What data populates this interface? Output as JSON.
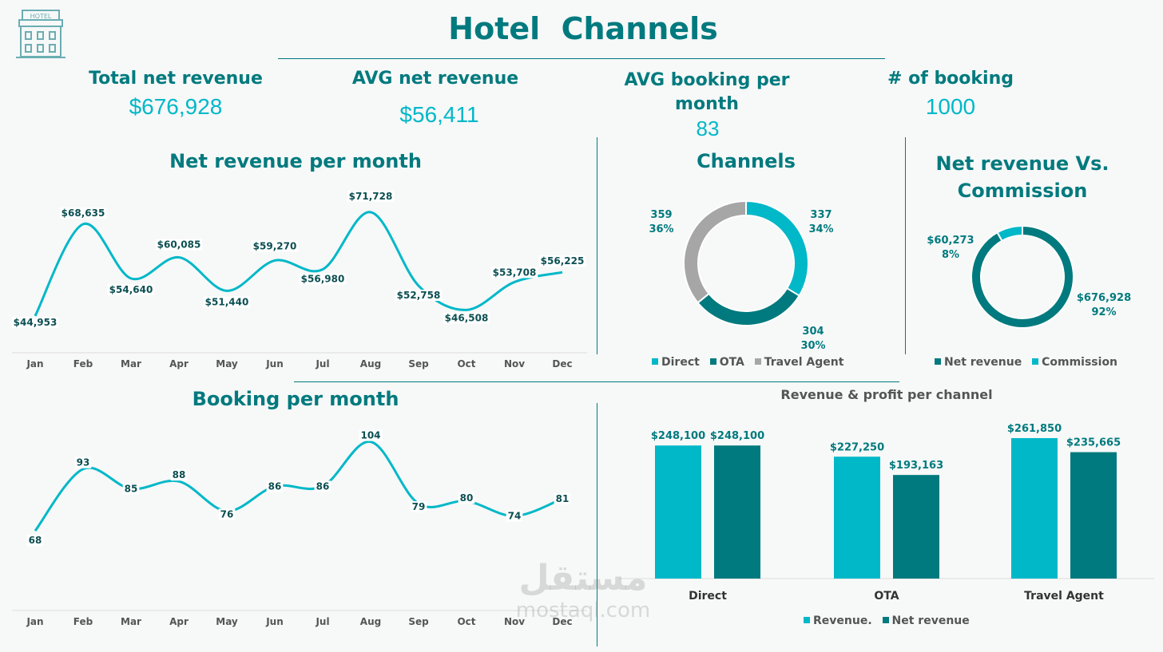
{
  "header": {
    "title": "Hotel  Channels",
    "logo_text": "HOTEL"
  },
  "kpis": [
    {
      "label": "Total net revenue",
      "value": "$676,928"
    },
    {
      "label": "AVG net revenue",
      "value": "$56,411"
    },
    {
      "label": "AVG  booking per month",
      "value": "83"
    },
    {
      "label": "# of booking",
      "value": "1000"
    }
  ],
  "colors": {
    "cyan": "#00B8C8",
    "teal": "#007A7E",
    "gray": "#A6A6A6"
  },
  "watermark": {
    "arabic": "مستقل",
    "latin": "mostaql.com"
  },
  "chart_data": [
    {
      "type": "line",
      "title": "Net revenue per month",
      "categories": [
        "Jan",
        "Feb",
        "Mar",
        "Apr",
        "May",
        "Jun",
        "Jul",
        "Aug",
        "Sep",
        "Oct",
        "Nov",
        "Dec"
      ],
      "values": [
        44953,
        68635,
        54640,
        60085,
        51440,
        59270,
        56980,
        71728,
        52758,
        46508,
        53708,
        56225
      ],
      "labels": [
        "$44,953",
        "$68,635",
        "$54,640",
        "$60,085",
        "$51,440",
        "$59,270",
        "$56,980",
        "$71,728",
        "$52,758",
        "$46,508",
        "$53,708",
        "$56,225"
      ]
    },
    {
      "type": "line",
      "title": "Booking per month",
      "categories": [
        "Jan",
        "Feb",
        "Mar",
        "Apr",
        "May",
        "Jun",
        "Jul",
        "Aug",
        "Sep",
        "Oct",
        "Nov",
        "Dec"
      ],
      "values": [
        68,
        93,
        85,
        88,
        76,
        86,
        86,
        104,
        79,
        80,
        74,
        81
      ],
      "labels": [
        "68",
        "93",
        "85",
        "88",
        "76",
        "86",
        "86",
        "104",
        "79",
        "80",
        "74",
        "81"
      ]
    },
    {
      "type": "pie",
      "title": "Channels",
      "legend": "bottom",
      "categories": [
        "Direct",
        "OTA",
        "Travel Agent"
      ],
      "values": [
        337,
        304,
        359
      ],
      "labels": [
        [
          "337",
          "34%"
        ],
        [
          "304",
          "30%"
        ],
        [
          "359",
          "36%"
        ]
      ]
    },
    {
      "type": "pie",
      "title": "Net revenue Vs. Commission",
      "legend": "bottom",
      "categories": [
        "Net revenue",
        "Commission"
      ],
      "values": [
        676928,
        60273
      ],
      "labels": [
        [
          "$676,928",
          "92%"
        ],
        [
          "$60,273",
          "8%"
        ]
      ]
    },
    {
      "type": "bar",
      "title": "Revenue & profit per channel",
      "legend": "bottom",
      "categories": [
        "Direct",
        "OTA",
        "Travel Agent"
      ],
      "series": [
        {
          "name": "Revenue.",
          "values": [
            248100,
            227250,
            261850
          ],
          "labels": [
            "$248,100",
            "$227,250",
            "$261,850"
          ]
        },
        {
          "name": "Net revenue",
          "values": [
            248100,
            193163,
            235665
          ],
          "labels": [
            "$248,100",
            "$193,163",
            "$235,665"
          ]
        }
      ]
    }
  ]
}
